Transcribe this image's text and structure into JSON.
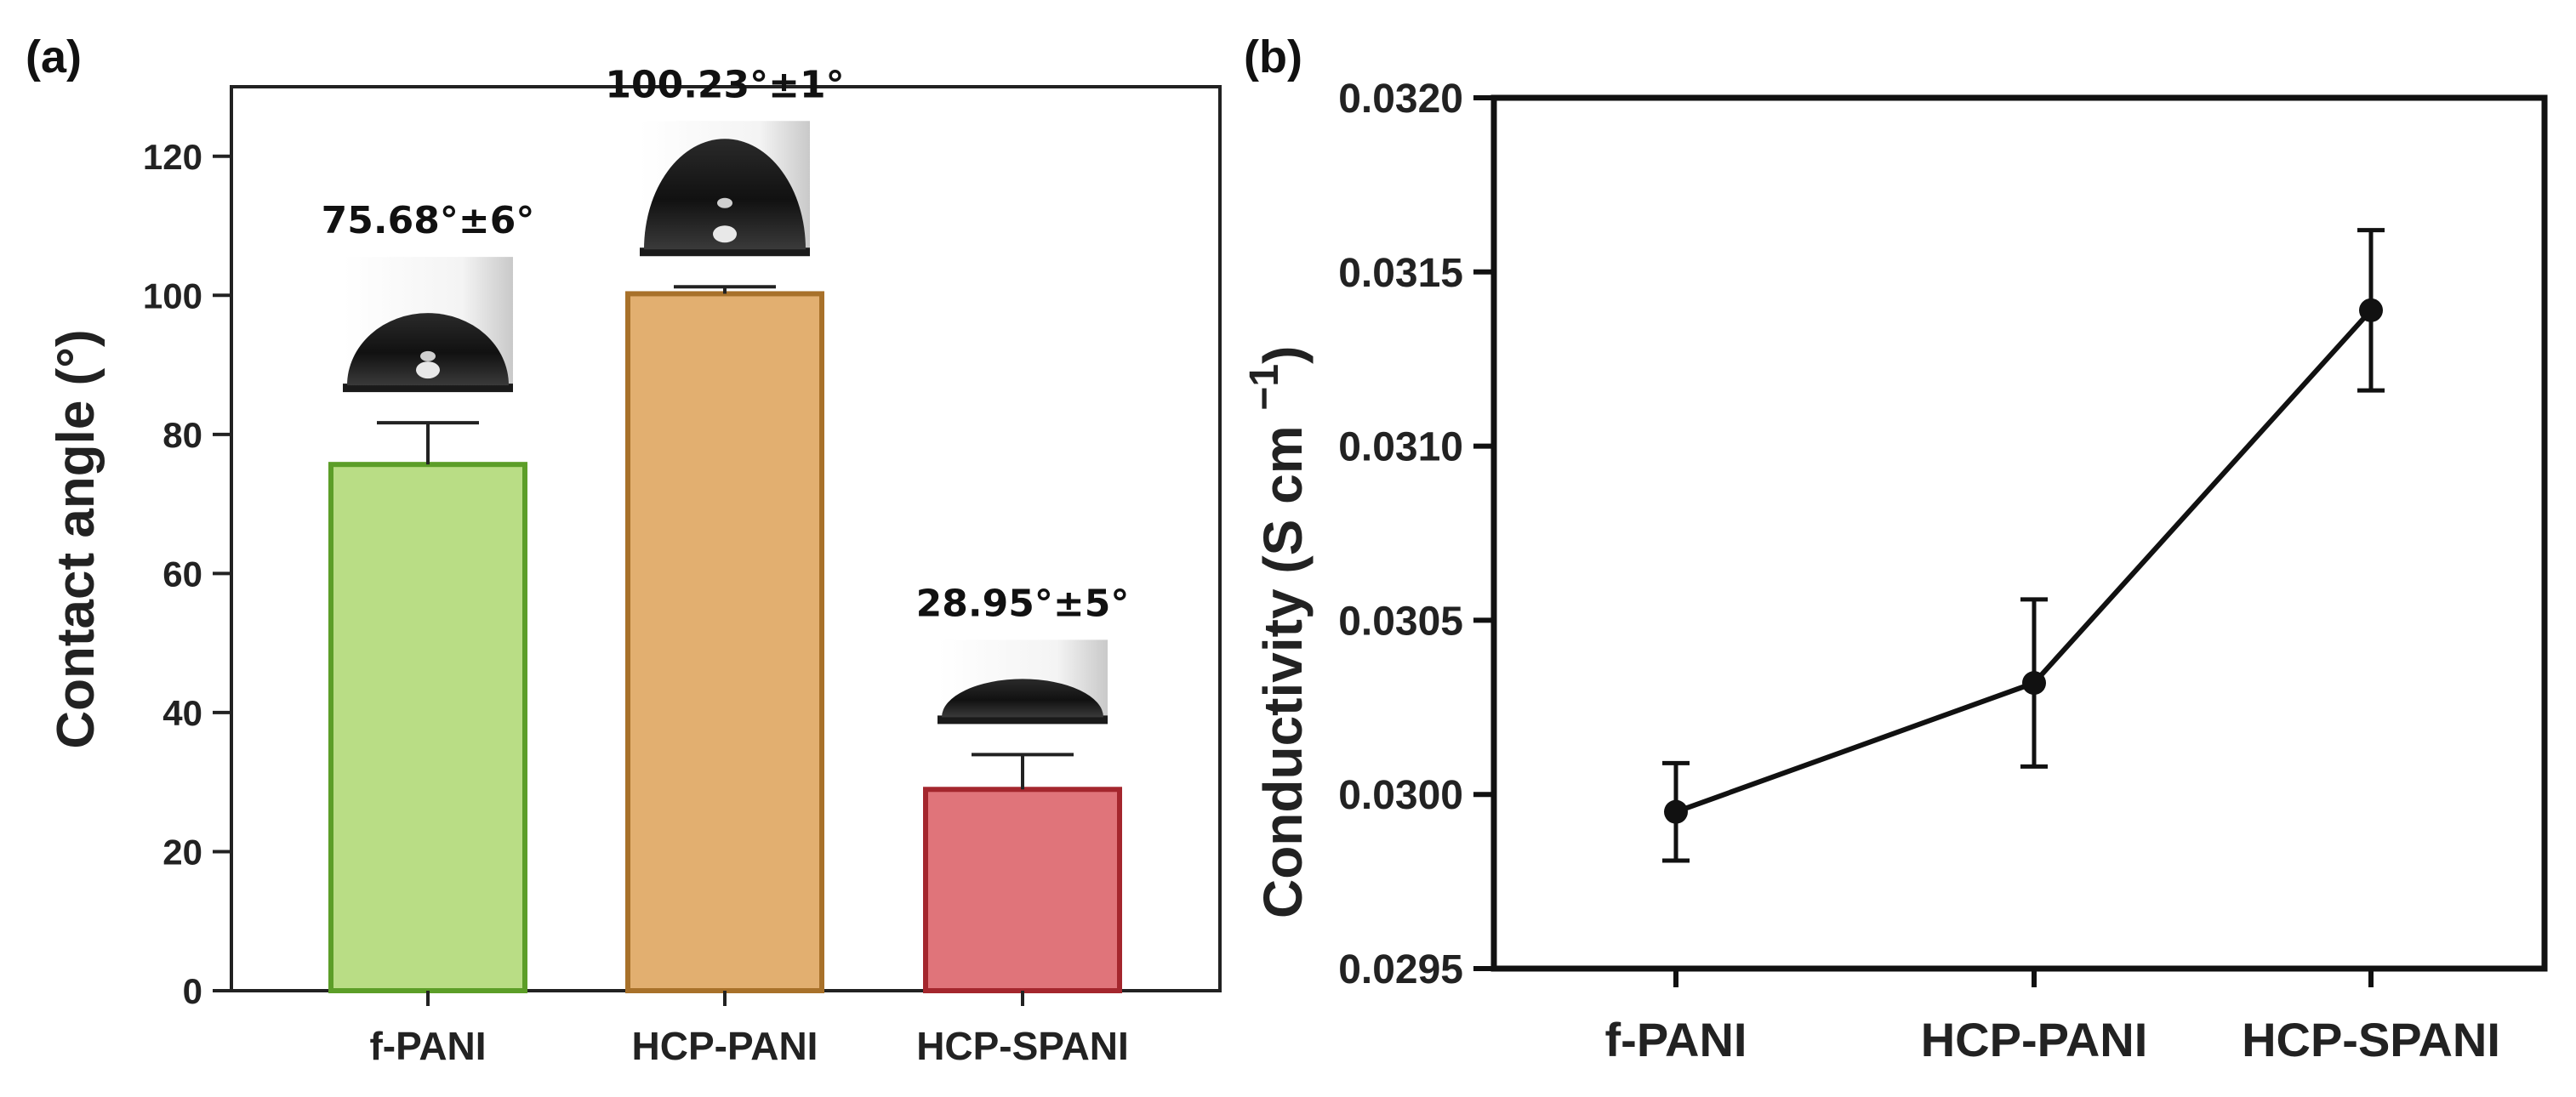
{
  "chart_data": [
    {
      "panel": "(a)",
      "type": "bar",
      "title": "",
      "xlabel": "",
      "ylabel": "Contact angle (°)",
      "ylim": [
        0,
        130
      ],
      "yticks": [
        0,
        20,
        40,
        60,
        80,
        100,
        120
      ],
      "categories": [
        "f-PANI",
        "HCP-PANI",
        "HCP-SPANI"
      ],
      "values": [
        75.68,
        100.23,
        28.95
      ],
      "errors": [
        6,
        1,
        5
      ],
      "data_labels": [
        "75.68°±6°",
        "100.23°±1°",
        "28.95°±5°"
      ],
      "colors": [
        "#b9dd85",
        "#e2af70",
        "#e0747a"
      ],
      "edge_colors": [
        "#5c9e28",
        "#a8712a",
        "#a4262d"
      ],
      "annotations": [
        "water droplet image above each bar"
      ]
    },
    {
      "panel": "(b)",
      "type": "line",
      "title": "",
      "xlabel": "",
      "ylabel": "Conductivity (S cm",
      "ylabel_superscript": "−1",
      "ylabel_close": ")",
      "ylim": [
        0.0295,
        0.032
      ],
      "yticks": [
        "0.0295",
        "0.0300",
        "0.0305",
        "0.0310",
        "0.0315",
        "0.0320"
      ],
      "categories": [
        "f-PANI",
        "HCP-PANI",
        "HCP-SPANI"
      ],
      "values": [
        0.02995,
        0.03032,
        0.03139
      ],
      "errors": [
        0.00014,
        0.00024,
        0.00023
      ],
      "line_color": "#111111",
      "marker": "circle"
    }
  ]
}
